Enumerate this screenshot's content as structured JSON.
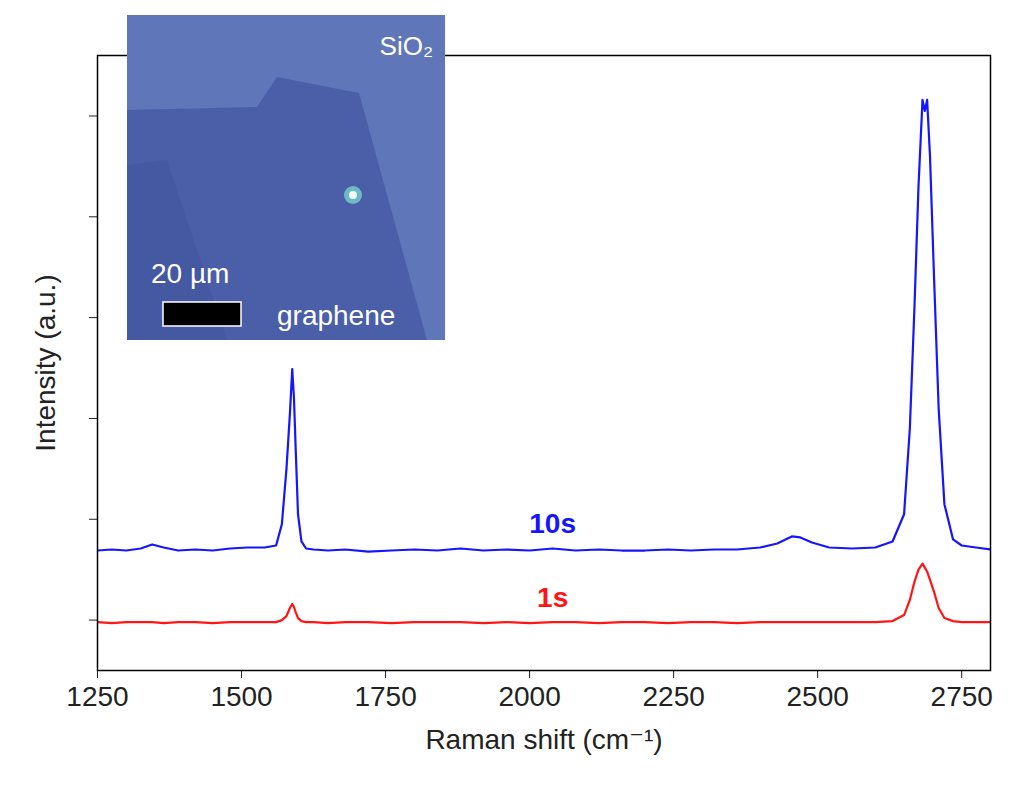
{
  "chart_data": {
    "type": "line",
    "x_label": "Raman shift (cm⁻¹)",
    "y_label": "Intensity (a.u.)",
    "xlim": [
      1250,
      2800
    ],
    "xticks": [
      1250,
      1500,
      1750,
      2000,
      2250,
      2500,
      2750
    ],
    "ylim": [
      0,
      6.1
    ],
    "yticks": [
      0.5,
      1.5,
      2.5,
      3.5,
      4.5,
      5.5
    ],
    "tick_labels": "x",
    "grid": false,
    "x": [
      1250,
      1275,
      1300,
      1325,
      1345,
      1365,
      1390,
      1420,
      1450,
      1480,
      1510,
      1540,
      1560,
      1570,
      1578,
      1584,
      1588,
      1591,
      1594,
      1598,
      1604,
      1612,
      1625,
      1650,
      1680,
      1720,
      1760,
      1800,
      1840,
      1880,
      1920,
      1960,
      2000,
      2040,
      2080,
      2120,
      2160,
      2200,
      2240,
      2280,
      2320,
      2360,
      2400,
      2430,
      2455,
      2470,
      2490,
      2520,
      2560,
      2600,
      2630,
      2650,
      2660,
      2668,
      2675,
      2682,
      2686,
      2690,
      2695,
      2702,
      2710,
      2720,
      2735,
      2750,
      2775,
      2800
    ],
    "series": [
      {
        "name": "10s",
        "color": "#1515ff",
        "values": [
          1.19,
          1.2,
          1.19,
          1.21,
          1.25,
          1.22,
          1.19,
          1.2,
          1.19,
          1.21,
          1.22,
          1.22,
          1.24,
          1.45,
          2.0,
          2.55,
          2.99,
          2.7,
          2.2,
          1.55,
          1.28,
          1.21,
          1.2,
          1.19,
          1.2,
          1.18,
          1.19,
          1.2,
          1.19,
          1.21,
          1.19,
          1.2,
          1.19,
          1.21,
          1.19,
          1.2,
          1.19,
          1.19,
          1.2,
          1.19,
          1.2,
          1.2,
          1.22,
          1.26,
          1.33,
          1.32,
          1.27,
          1.22,
          1.21,
          1.22,
          1.28,
          1.55,
          2.4,
          3.6,
          4.8,
          5.66,
          5.55,
          5.66,
          5.1,
          3.9,
          2.6,
          1.65,
          1.3,
          1.24,
          1.22,
          1.2
        ]
      },
      {
        "name": "1s",
        "color": "#ff1515",
        "values": [
          0.48,
          0.47,
          0.48,
          0.48,
          0.48,
          0.47,
          0.48,
          0.48,
          0.47,
          0.48,
          0.48,
          0.48,
          0.48,
          0.5,
          0.54,
          0.62,
          0.66,
          0.63,
          0.58,
          0.52,
          0.49,
          0.48,
          0.48,
          0.47,
          0.48,
          0.48,
          0.47,
          0.48,
          0.48,
          0.48,
          0.47,
          0.48,
          0.47,
          0.48,
          0.48,
          0.47,
          0.48,
          0.48,
          0.47,
          0.48,
          0.48,
          0.47,
          0.48,
          0.48,
          0.48,
          0.48,
          0.48,
          0.48,
          0.48,
          0.48,
          0.49,
          0.55,
          0.7,
          0.88,
          1.0,
          1.06,
          1.02,
          0.98,
          0.9,
          0.78,
          0.62,
          0.52,
          0.49,
          0.48,
          0.48,
          0.48
        ]
      }
    ],
    "inset_labels": {
      "substrate": "SiO₂",
      "scale_bar": "20 µm",
      "flake": "graphene"
    }
  }
}
